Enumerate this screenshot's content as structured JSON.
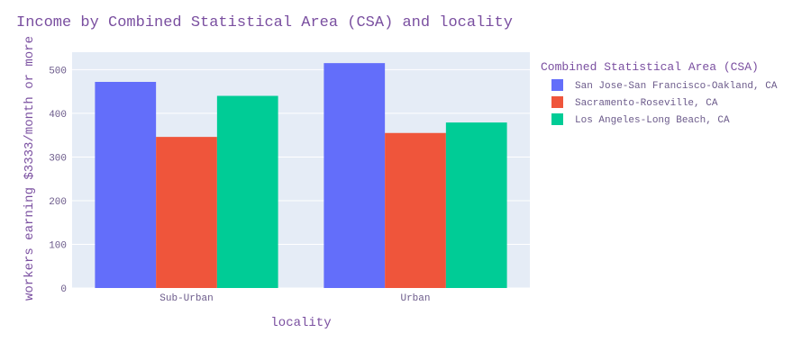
{
  "chart_data": {
    "type": "bar",
    "title": "Income by Combined Statistical Area (CSA) and locality",
    "xlabel": "locality",
    "ylabel": "workers earning $3333/month or more",
    "categories": [
      "Sub-Urban",
      "Urban"
    ],
    "series": [
      {
        "name": "San Jose-San Francisco-Oakland, CA",
        "values": [
          472,
          515
        ]
      },
      {
        "name": "Sacramento-Roseville, CA",
        "values": [
          346,
          355
        ]
      },
      {
        "name": "Los Angeles-Long Beach, CA",
        "values": [
          440,
          379
        ]
      }
    ],
    "ylim": [
      0,
      540
    ],
    "yticks": [
      0,
      100,
      200,
      300,
      400,
      500
    ],
    "legend": {
      "title": "Combined Statistical Area (CSA)",
      "placement": "right"
    },
    "grid": true
  },
  "colors": {
    "plot_bg": "#e5ecf6",
    "grid": "#ffffff",
    "series": [
      "#636efa",
      "#ef553b",
      "#00cc96"
    ]
  }
}
